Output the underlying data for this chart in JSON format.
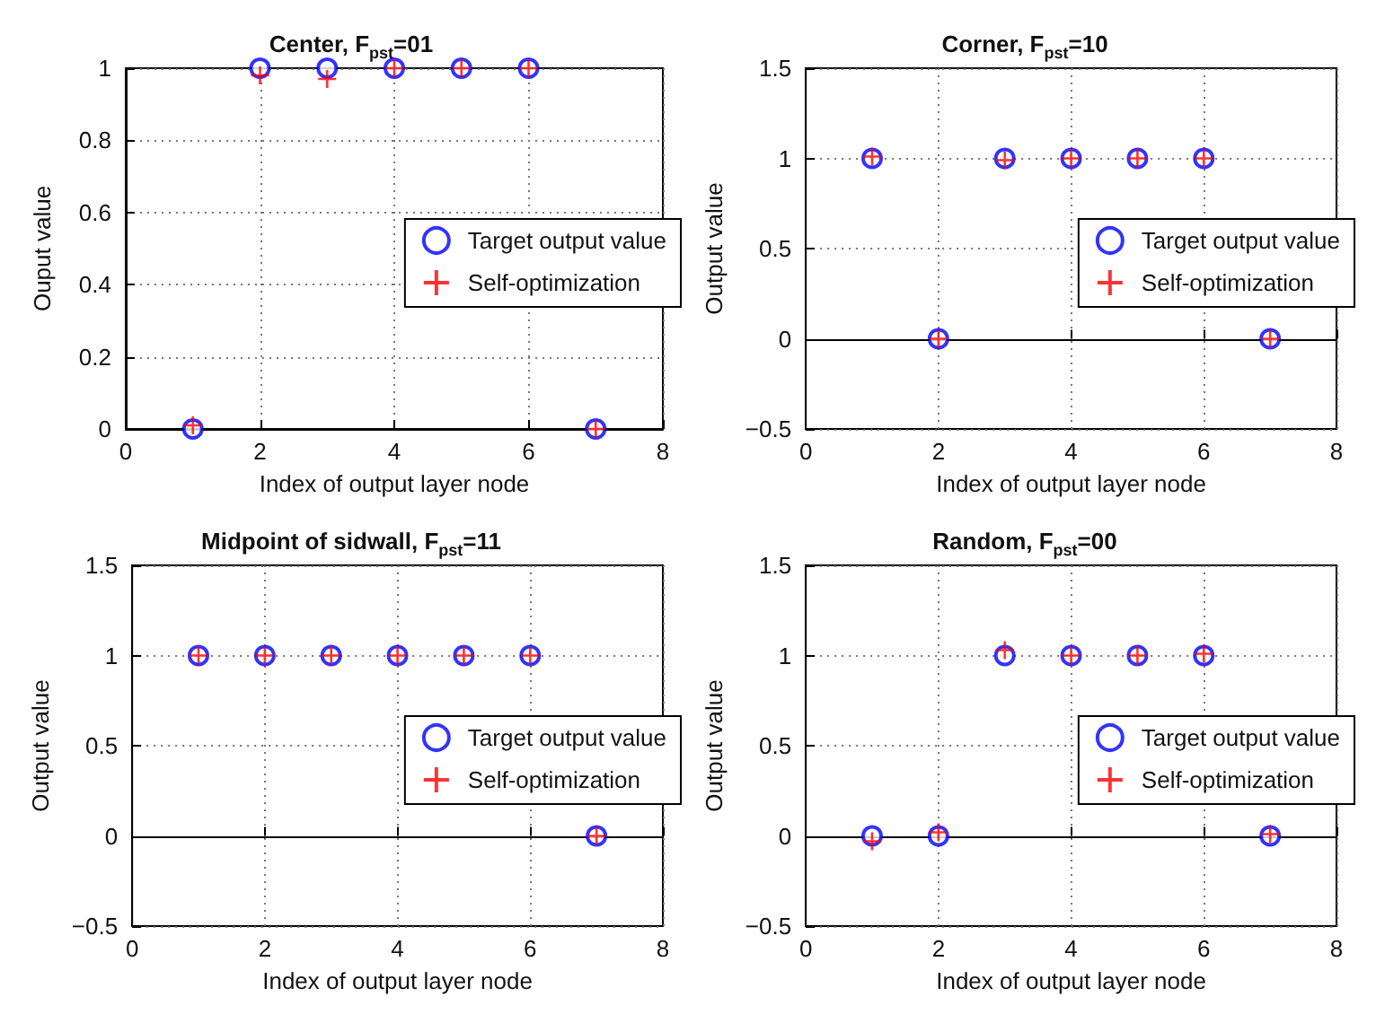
{
  "chart_data": [
    {
      "type": "scatter",
      "title": "Center, F$_{pst}$=01",
      "xlabel": "Index of output layer node",
      "ylabel": "Ouput value",
      "x": [
        1,
        2,
        3,
        4,
        5,
        6,
        7
      ],
      "series": [
        {
          "name": "Target output value",
          "color": "#0000ff",
          "marker": "circle",
          "values": [
            0,
            1,
            1,
            1,
            1,
            1,
            0
          ]
        },
        {
          "name": "Self-optimization",
          "color": "#ff0000",
          "marker": "cross",
          "values": [
            0.01,
            0.98,
            0.97,
            1,
            1,
            1,
            0
          ]
        }
      ],
      "xlim": [
        0,
        8
      ],
      "xticks": [
        0,
        2,
        4,
        6,
        8
      ],
      "ylim": [
        0,
        1
      ],
      "yticks": [
        0,
        0.2,
        0.4,
        0.6,
        0.8,
        1
      ],
      "grid": true,
      "legend": "right"
    },
    {
      "type": "scatter",
      "title": "Corner, F$_{pst}$=10",
      "xlabel": "Index of output layer node",
      "ylabel": "Output value",
      "x": [
        1,
        2,
        3,
        4,
        5,
        6,
        7
      ],
      "series": [
        {
          "name": "Target output value",
          "color": "#0000ff",
          "marker": "circle",
          "values": [
            1,
            0,
            1,
            1,
            1,
            1,
            0
          ]
        },
        {
          "name": "Self-optimization",
          "color": "#ff0000",
          "marker": "cross",
          "values": [
            1.01,
            0,
            0.99,
            1,
            1,
            1,
            0
          ]
        }
      ],
      "xlim": [
        0,
        8
      ],
      "xticks": [
        0,
        2,
        4,
        6,
        8
      ],
      "ylim": [
        -0.5,
        1.5
      ],
      "yticks": [
        -0.5,
        0,
        0.5,
        1,
        1.5
      ],
      "grid": true,
      "legend": "right"
    },
    {
      "type": "scatter",
      "title": "Midpoint of sidwall, F$_{pst}$=11",
      "xlabel": "Index of output layer node",
      "ylabel": "Output value",
      "x": [
        1,
        2,
        3,
        4,
        5,
        6,
        7
      ],
      "series": [
        {
          "name": "Target output value",
          "color": "#0000ff",
          "marker": "circle",
          "values": [
            1,
            1,
            1,
            1,
            1,
            1,
            0
          ]
        },
        {
          "name": "Self-optimization",
          "color": "#ff0000",
          "marker": "cross",
          "values": [
            1,
            1,
            1,
            1,
            1,
            1,
            0
          ]
        }
      ],
      "xlim": [
        0,
        8
      ],
      "xticks": [
        0,
        2,
        4,
        6,
        8
      ],
      "ylim": [
        -0.5,
        1.5
      ],
      "yticks": [
        -0.5,
        0,
        0.5,
        1,
        1.5
      ],
      "grid": true,
      "legend": "right"
    },
    {
      "type": "scatter",
      "title": "Random, F$_{pst}$=00",
      "xlabel": "Index of output layer node",
      "ylabel": "Output value",
      "x": [
        1,
        2,
        3,
        4,
        5,
        6,
        7
      ],
      "series": [
        {
          "name": "Target output value",
          "color": "#0000ff",
          "marker": "circle",
          "values": [
            0,
            0,
            1,
            1,
            1,
            1,
            0
          ]
        },
        {
          "name": "Self-optimization",
          "color": "#ff0000",
          "marker": "cross",
          "values": [
            -0.03,
            0.02,
            1.03,
            1,
            1,
            1.01,
            0.01
          ]
        }
      ],
      "xlim": [
        0,
        8
      ],
      "xticks": [
        0,
        2,
        4,
        6,
        8
      ],
      "ylim": [
        -0.5,
        1.5
      ],
      "yticks": [
        -0.5,
        0,
        0.5,
        1,
        1.5
      ],
      "grid": true,
      "legend": "right"
    }
  ]
}
